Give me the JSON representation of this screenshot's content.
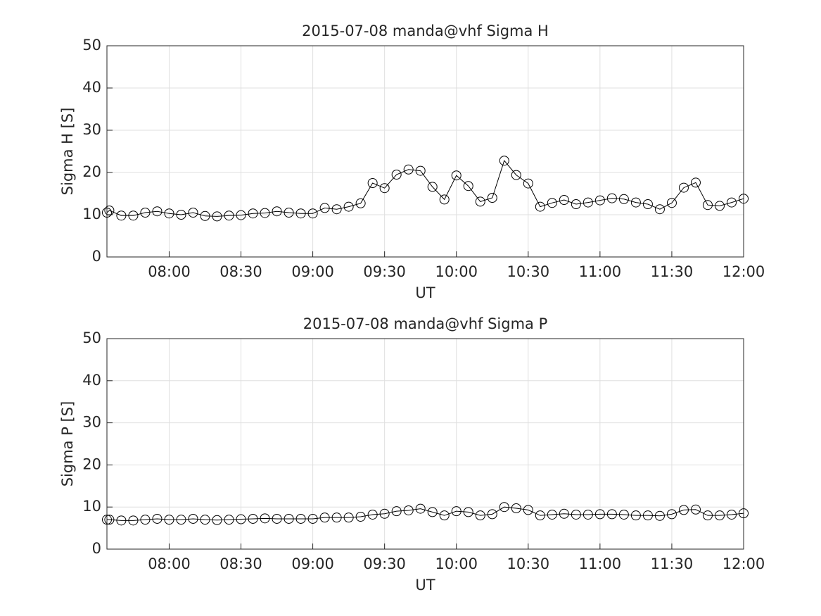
{
  "chart_data": [
    {
      "type": "line",
      "title": "2015-07-08  manda@vhf Sigma H",
      "xlabel": "UT",
      "ylabel": "Sigma H [S]",
      "x": [
        "07:34",
        "07:35",
        "07:40",
        "07:45",
        "07:50",
        "07:55",
        "08:00",
        "08:05",
        "08:10",
        "08:15",
        "08:20",
        "08:25",
        "08:30",
        "08:35",
        "08:40",
        "08:45",
        "08:50",
        "08:55",
        "09:00",
        "09:05",
        "09:10",
        "09:15",
        "09:20",
        "09:25",
        "09:30",
        "09:35",
        "09:40",
        "09:45",
        "09:50",
        "09:55",
        "10:00",
        "10:05",
        "10:10",
        "10:15",
        "10:20",
        "10:25",
        "10:30",
        "10:35",
        "10:40",
        "10:45",
        "10:50",
        "10:55",
        "11:00",
        "11:05",
        "11:10",
        "11:15",
        "11:20",
        "11:25",
        "11:30",
        "11:35",
        "11:40",
        "11:45",
        "11:50",
        "11:55",
        "12:00"
      ],
      "values": [
        10.5,
        11,
        9.8,
        9.8,
        10.5,
        10.8,
        10.3,
        10,
        10.5,
        9.7,
        9.6,
        9.8,
        9.9,
        10.3,
        10.4,
        10.8,
        10.5,
        10.3,
        10.3,
        11.6,
        11.3,
        11.9,
        12.7,
        17.5,
        16.3,
        19.5,
        20.7,
        20.4,
        16.6,
        13.6,
        19.3,
        16.8,
        13.1,
        14,
        22.8,
        19.4,
        17.4,
        11.9,
        12.8,
        13.5,
        12.5,
        12.9,
        13.4,
        13.9,
        13.7,
        12.9,
        12.5,
        11.3,
        12.8,
        16.4,
        17.6,
        12.3,
        12.1,
        12.9,
        13.8
      ],
      "color": "#000000",
      "marker": "circle",
      "xlim": [
        "07:34",
        "12:00"
      ],
      "xticks": [
        "08:00",
        "08:30",
        "09:00",
        "09:30",
        "10:00",
        "10:30",
        "11:00",
        "11:30",
        "12:00"
      ],
      "ylim": [
        0,
        50
      ],
      "yticks": [
        0,
        10,
        20,
        30,
        40,
        50
      ],
      "grid": true
    },
    {
      "type": "line",
      "title": "2015-07-08  manda@vhf Sigma P",
      "xlabel": "UT",
      "ylabel": "Sigma P [S]",
      "x": [
        "07:34",
        "07:35",
        "07:40",
        "07:45",
        "07:50",
        "07:55",
        "08:00",
        "08:05",
        "08:10",
        "08:15",
        "08:20",
        "08:25",
        "08:30",
        "08:35",
        "08:40",
        "08:45",
        "08:50",
        "08:55",
        "09:00",
        "09:05",
        "09:10",
        "09:15",
        "09:20",
        "09:25",
        "09:30",
        "09:35",
        "09:40",
        "09:45",
        "09:50",
        "09:55",
        "10:00",
        "10:05",
        "10:10",
        "10:15",
        "10:20",
        "10:25",
        "10:30",
        "10:35",
        "10:40",
        "10:45",
        "10:50",
        "10:55",
        "11:00",
        "11:05",
        "11:10",
        "11:15",
        "11:20",
        "11:25",
        "11:30",
        "11:35",
        "11:40",
        "11:45",
        "11:50",
        "11:55",
        "12:00"
      ],
      "values": [
        7,
        7,
        6.8,
        6.8,
        7,
        7.2,
        7,
        7,
        7.2,
        7,
        6.9,
        7,
        7.1,
        7.2,
        7.3,
        7.2,
        7.2,
        7.2,
        7.2,
        7.5,
        7.5,
        7.5,
        7.7,
        8.2,
        8.4,
        9,
        9.2,
        9.6,
        8.8,
        8,
        9,
        8.8,
        8,
        8.3,
        10,
        9.7,
        9.3,
        8,
        8.2,
        8.4,
        8.2,
        8.2,
        8.3,
        8.3,
        8.2,
        8,
        8,
        7.9,
        8.3,
        9.3,
        9.4,
        8,
        8,
        8.2,
        8.5
      ],
      "color": "#000000",
      "marker": "circle",
      "xlim": [
        "07:34",
        "12:00"
      ],
      "xticks": [
        "08:00",
        "08:30",
        "09:00",
        "09:30",
        "10:00",
        "10:30",
        "11:00",
        "11:30",
        "12:00"
      ],
      "ylim": [
        0,
        50
      ],
      "yticks": [
        0,
        10,
        20,
        30,
        40,
        50
      ],
      "grid": true
    }
  ]
}
